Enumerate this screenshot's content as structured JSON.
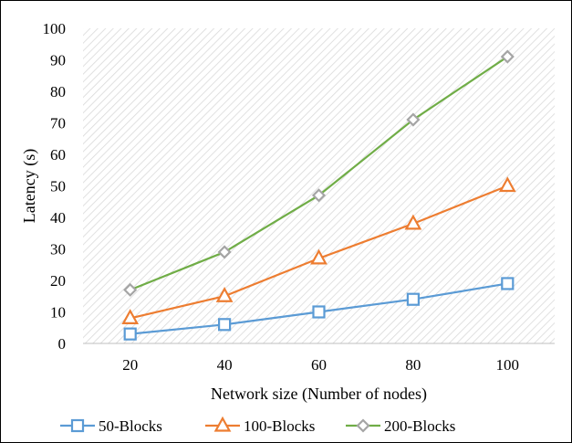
{
  "chart_data": {
    "type": "line",
    "title": "",
    "xlabel": "Network size (Number of nodes)",
    "ylabel": "Latency (s)",
    "x": [
      20,
      40,
      60,
      80,
      100
    ],
    "x_ticks": [
      "20",
      "40",
      "60",
      "80",
      "100"
    ],
    "ylim": [
      0,
      100
    ],
    "y_ticks": [
      "0",
      "10",
      "20",
      "30",
      "40",
      "50",
      "60",
      "70",
      "80",
      "90",
      "100"
    ],
    "grid": false,
    "plot_background": "diagonal-hatch",
    "legend_position": "bottom",
    "series": [
      {
        "name": "50-Blocks",
        "values": [
          3,
          6,
          10,
          14,
          19
        ],
        "color": "#5b9bd5",
        "marker": "square"
      },
      {
        "name": "100-Blocks",
        "values": [
          8,
          15,
          27,
          38,
          50
        ],
        "color": "#ed7d31",
        "marker": "triangle"
      },
      {
        "name": "200-Blocks",
        "values": [
          17,
          29,
          47,
          71,
          91
        ],
        "color": "#70ad47",
        "marker_color": "#a5a5a5",
        "marker": "diamond"
      }
    ]
  }
}
